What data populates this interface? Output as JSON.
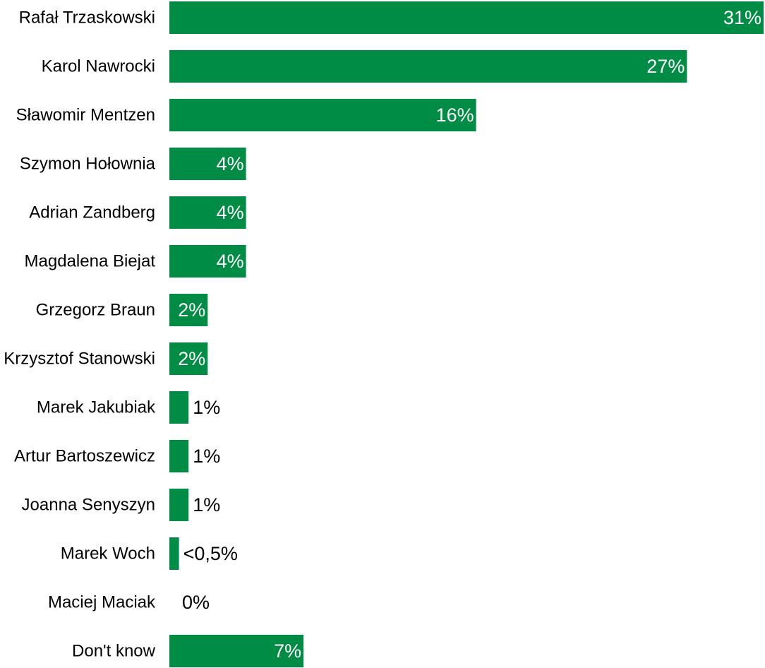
{
  "chart_data": {
    "type": "bar",
    "orientation": "horizontal",
    "categories": [
      "Rafał Trzaskowski",
      "Karol Nawrocki",
      "Sławomir Mentzen",
      "Szymon Hołownia",
      "Adrian Zandberg",
      "Magdalena Biejat",
      "Grzegorz Braun",
      "Krzysztof Stanowski",
      "Marek Jakubiak",
      "Artur Bartoszewicz",
      "Joanna Senyszyn",
      "Marek Woch",
      "Maciej Maciak",
      "Don't know"
    ],
    "values": [
      31,
      27,
      16,
      4,
      4,
      4,
      2,
      2,
      1,
      1,
      1,
      0.5,
      0,
      7
    ],
    "value_labels": [
      "31%",
      "27%",
      "16%",
      "4%",
      "4%",
      "4%",
      "2%",
      "2%",
      "1%",
      "1%",
      "1%",
      "<0,5%",
      "0%",
      "7%"
    ],
    "xlim": [
      0,
      31
    ],
    "bar_color": "#008c45",
    "grid": false,
    "legend": "none"
  }
}
